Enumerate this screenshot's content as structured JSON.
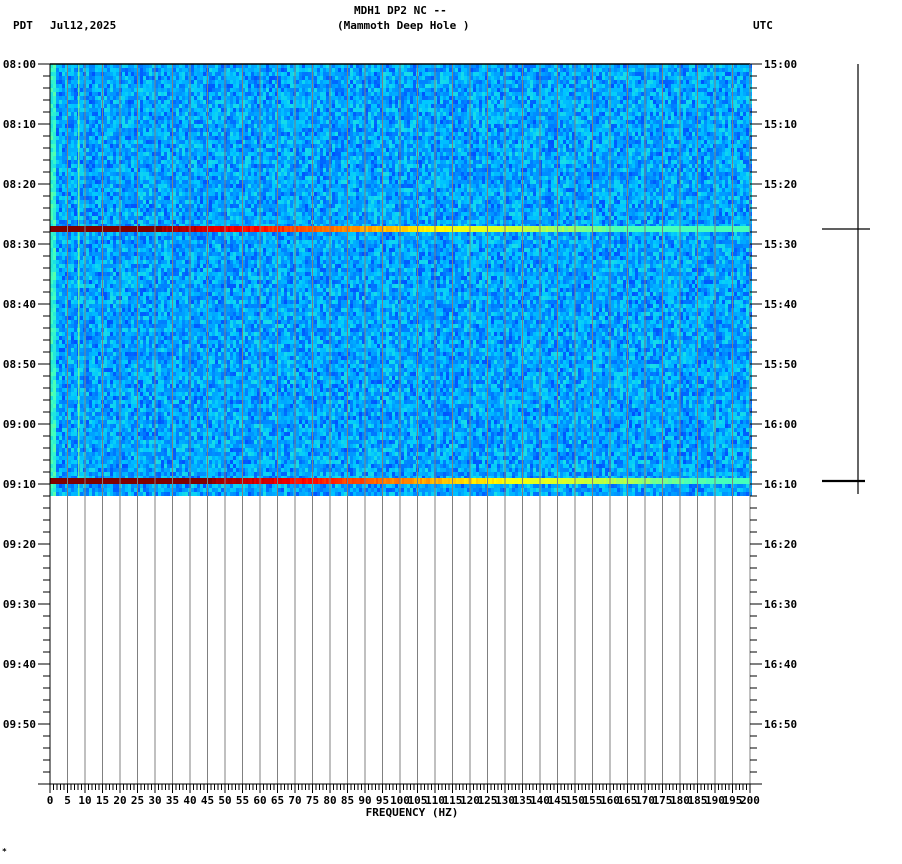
{
  "header": {
    "station_line": "MDH1 DP2 NC --",
    "location_line": "(Mammoth Deep Hole )",
    "left_timezone": "PDT",
    "date": "Jul12,2025",
    "right_timezone": "UTC"
  },
  "footer": {
    "corner_mark": "*"
  },
  "chart_data": {
    "type": "heatmap",
    "title": "MDH1 DP2 NC -- (Mammoth Deep Hole )",
    "subtitle": "Jul12,2025",
    "xlabel": "FREQUENCY (HZ)",
    "ylabel_left": "PDT",
    "ylabel_right": "UTC",
    "xlim": [
      0,
      200
    ],
    "x_ticks": [
      0,
      5,
      10,
      15,
      20,
      25,
      30,
      35,
      40,
      45,
      50,
      55,
      60,
      65,
      70,
      75,
      80,
      85,
      90,
      95,
      100,
      105,
      110,
      115,
      120,
      125,
      130,
      135,
      140,
      145,
      150,
      155,
      160,
      165,
      170,
      175,
      180,
      185,
      190,
      195,
      200
    ],
    "x_tick_labels": [
      "0",
      "5",
      "10",
      "15",
      "20",
      "25",
      "30",
      "35",
      "40",
      "45",
      "50",
      "55",
      "60",
      "65",
      "70",
      "75",
      "80",
      "85",
      "90",
      "95",
      "100",
      "105",
      "110",
      "115",
      "120",
      "125",
      "130",
      "135",
      "140",
      "145",
      "150",
      "155",
      "160",
      "165",
      "170",
      "175",
      "180",
      "185",
      "190",
      "195",
      "200"
    ],
    "y_range_minutes": [
      0,
      120
    ],
    "y_ticks_left": [
      "08:00",
      "08:10",
      "08:20",
      "08:30",
      "08:40",
      "08:50",
      "09:00",
      "09:10",
      "09:20",
      "09:30",
      "09:40",
      "09:50"
    ],
    "y_ticks_right": [
      "15:00",
      "15:10",
      "15:20",
      "15:30",
      "15:40",
      "15:50",
      "16:00",
      "16:10",
      "16:20",
      "16:30",
      "16:40",
      "16:50"
    ],
    "data_extent": {
      "start": "08:00",
      "end": "09:12"
    },
    "background_level": "low (blue) noise across all frequencies",
    "persistent_line_hz": 8,
    "events": [
      {
        "time_pdt": "08:27",
        "time_utc": "15:27",
        "description": "broadband transient, high energy (dark red) below ~35 Hz, decaying to yellow/cyan toward 200 Hz"
      },
      {
        "time_pdt": "09:09",
        "time_utc": "16:09",
        "description": "broadband transient, high energy (dark red) below ~50 Hz, decaying to yellow/cyan toward 200 Hz"
      }
    ],
    "colormap": [
      "#0000ff",
      "#0080ff",
      "#00c8ff",
      "#40ffc0",
      "#c0ff40",
      "#ffff00",
      "#ff8000",
      "#ff0000",
      "#800000"
    ],
    "grid": true,
    "grid_color": "#808080"
  }
}
